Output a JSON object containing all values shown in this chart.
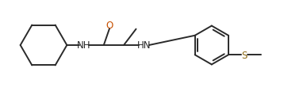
{
  "background": "#ffffff",
  "bond_color": "#2a2a2a",
  "bond_lw": 1.4,
  "O_color": "#c85000",
  "S_color": "#8B6914",
  "N_color": "#2a2a2a",
  "font_size": 8.5,
  "fig_width": 3.87,
  "fig_height": 1.16,
  "dpi": 100,
  "xlim": [
    0.0,
    9.5
  ],
  "ylim": [
    0.3,
    2.8
  ]
}
